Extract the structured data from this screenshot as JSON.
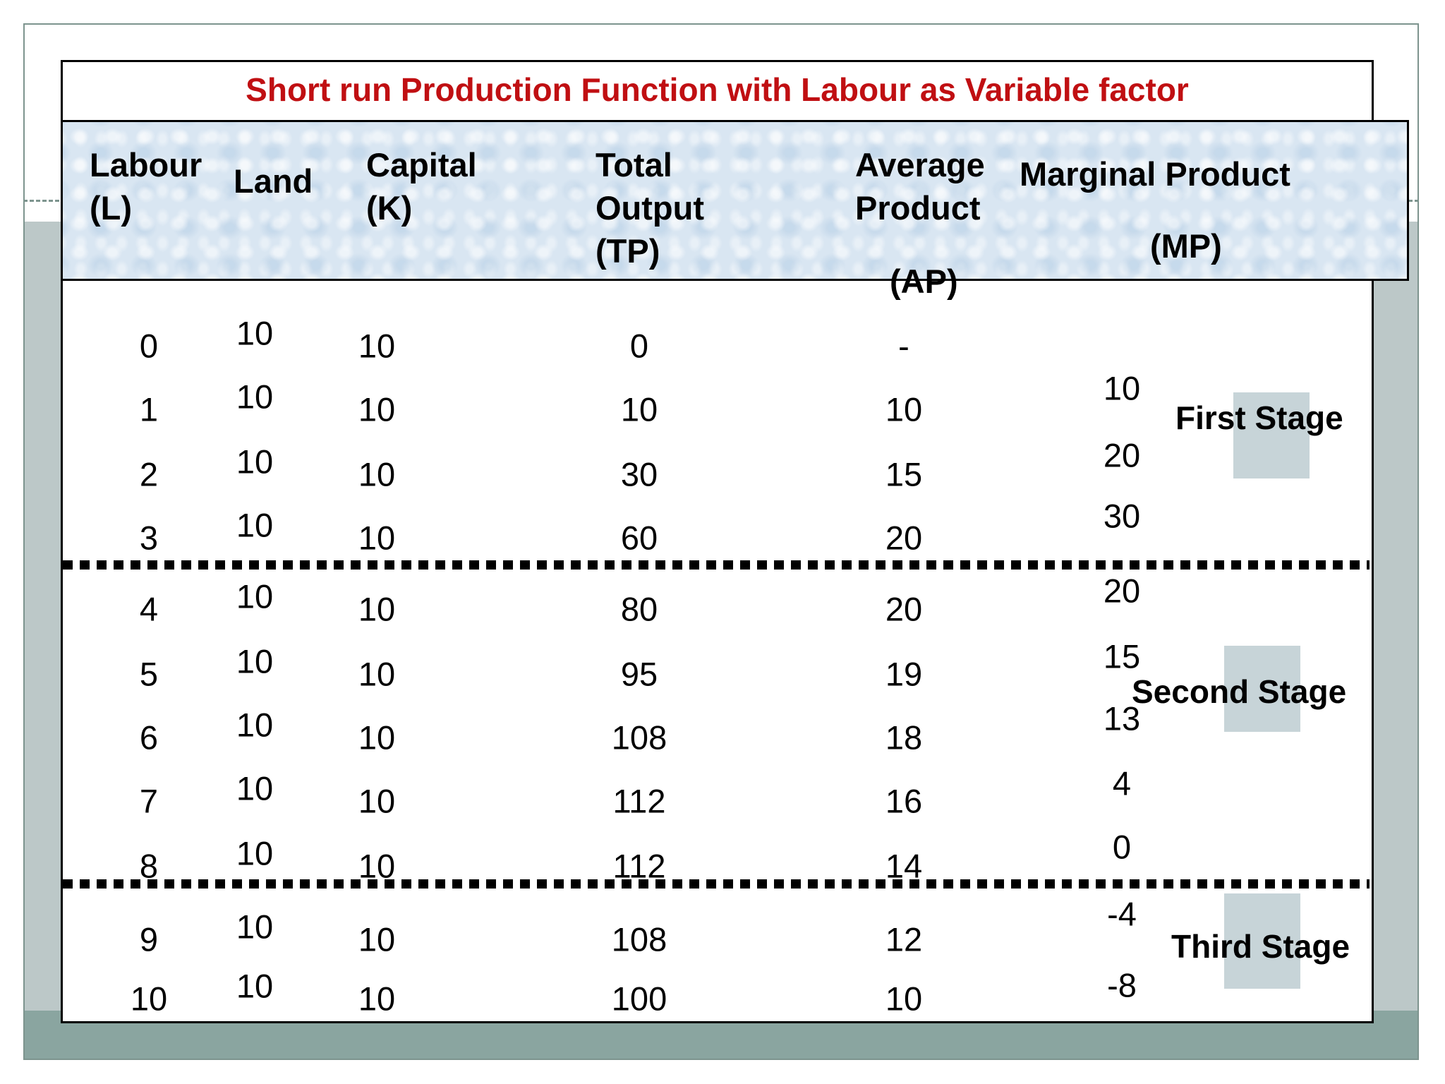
{
  "slide": {
    "title": "Short run Production Function with Labour as Variable factor",
    "headers": {
      "labour": "Labour\n(L)",
      "land": "Land",
      "capital": "Capital\n(K)",
      "total_output": "Total\nOutput\n(TP)",
      "average_product": "Average\nProduct",
      "average_product_abbr": "(AP)",
      "marginal_product": "Marginal Product",
      "marginal_product_abbr": "(MP)"
    },
    "stages": {
      "first": "First Stage",
      "second": "Second Stage",
      "third": "Third Stage"
    }
  },
  "chart_data": {
    "type": "table",
    "columns": [
      "Labour (L)",
      "Land",
      "Capital (K)",
      "Total Output (TP)",
      "Average Product (AP)",
      "Marginal Product (MP)"
    ],
    "rows": [
      {
        "labour": "0",
        "land": "10",
        "capital": "10",
        "tp": "0",
        "ap": "-"
      },
      {
        "labour": "1",
        "land": "10",
        "capital": "10",
        "tp": "10",
        "ap": "10"
      },
      {
        "labour": "2",
        "land": "10",
        "capital": "10",
        "tp": "30",
        "ap": "15"
      },
      {
        "labour": "3",
        "land": "10",
        "capital": "10",
        "tp": "60",
        "ap": "20"
      },
      {
        "labour": "4",
        "land": "10",
        "capital": "10",
        "tp": "80",
        "ap": "20"
      },
      {
        "labour": "5",
        "land": "10",
        "capital": "10",
        "tp": "95",
        "ap": "19"
      },
      {
        "labour": "6",
        "land": "10",
        "capital": "10",
        "tp": "108",
        "ap": "18"
      },
      {
        "labour": "7",
        "land": "10",
        "capital": "10",
        "tp": "112",
        "ap": "16"
      },
      {
        "labour": "8",
        "land": "10",
        "capital": "10",
        "tp": "112",
        "ap": "14"
      },
      {
        "labour": "9",
        "land": "10",
        "capital": "10",
        "tp": "108",
        "ap": "12"
      },
      {
        "labour": "10",
        "land": "10",
        "capital": "10",
        "tp": "100",
        "ap": "10"
      }
    ],
    "marginal_product_between_rows": [
      "10",
      "20",
      "30",
      "20",
      "15",
      "13",
      "4",
      "0",
      "-4",
      "-8"
    ],
    "stage_boundaries_after_labour": [
      3,
      8
    ],
    "stages": [
      "First Stage",
      "Second Stage",
      "Third Stage"
    ]
  },
  "colors": {
    "title_red": "#c00f12",
    "frame_border": "#7d948e",
    "background_gray": "#bcc8c8",
    "bottom_band_teal": "#8aa5a0",
    "header_blue": "#d9e6f2",
    "stage_highlight": "#c7d4d8",
    "text_black": "#000000"
  }
}
